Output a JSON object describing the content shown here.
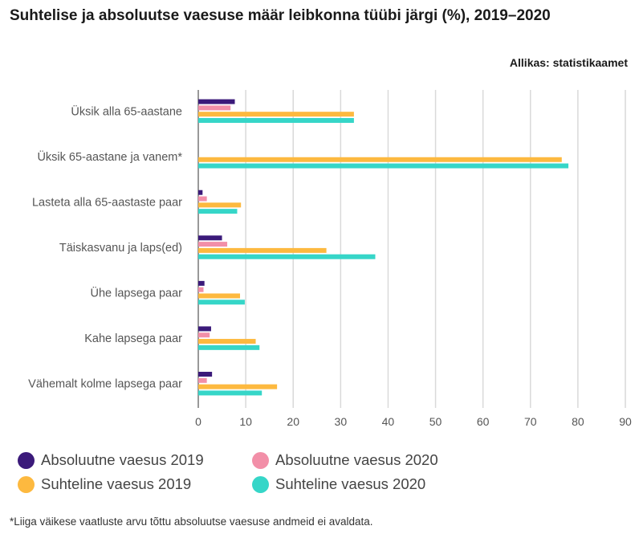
{
  "title": "Suhtelise ja absoluutse vaesuse määr leibkonna tüübi järgi (%), 2019–2020",
  "source": "Allikas: statistikaamet",
  "footnote": "*Liiga väikese vaatluste arvu tõttu absoluutse vaesuse andmeid ei avaldata.",
  "colors": {
    "abs2019": "#3b1a7a",
    "abs2020": "#f28fa8",
    "rel2019": "#fdb93f",
    "rel2020": "#36d6c8",
    "grid": "#d9d9d9",
    "text": "#555555"
  },
  "chart_data": {
    "type": "bar",
    "orientation": "horizontal",
    "title": "Suhtelise ja absoluutse vaesuse määr leibkonna tüübi järgi (%), 2019–2020",
    "xlim": [
      0,
      90
    ],
    "xticks": [
      "0",
      "10",
      "20",
      "30",
      "40",
      "50",
      "60",
      "70",
      "80",
      "90"
    ],
    "grid": true,
    "legend_position": "bottom",
    "categories": [
      "Üksik alla 65-aastane",
      "Üksik 65-aastane ja vanem*",
      "Lasteta alla 65-aastaste paar",
      "Täiskasvanu ja laps(ed)",
      "Ühe lapsega paar",
      "Kahe lapsega paar",
      "Vähemalt kolme lapsega paar"
    ],
    "series": [
      {
        "name": "Absoluutne vaesus 2019",
        "color_key": "abs2019",
        "values": [
          7.7,
          null,
          0.9,
          5.0,
          1.3,
          2.7,
          2.9
        ]
      },
      {
        "name": "Absoluutne vaesus 2020",
        "color_key": "abs2020",
        "values": [
          6.8,
          null,
          1.8,
          6.1,
          1.1,
          2.4,
          1.8
        ]
      },
      {
        "name": "Suhteline vaesus 2019",
        "color_key": "rel2019",
        "values": [
          32.8,
          76.6,
          9.0,
          27.0,
          8.8,
          12.1,
          16.6
        ]
      },
      {
        "name": "Suhteline vaesus 2020",
        "color_key": "rel2020",
        "values": [
          32.8,
          78.0,
          8.2,
          37.3,
          9.8,
          12.9,
          13.4
        ]
      }
    ]
  }
}
